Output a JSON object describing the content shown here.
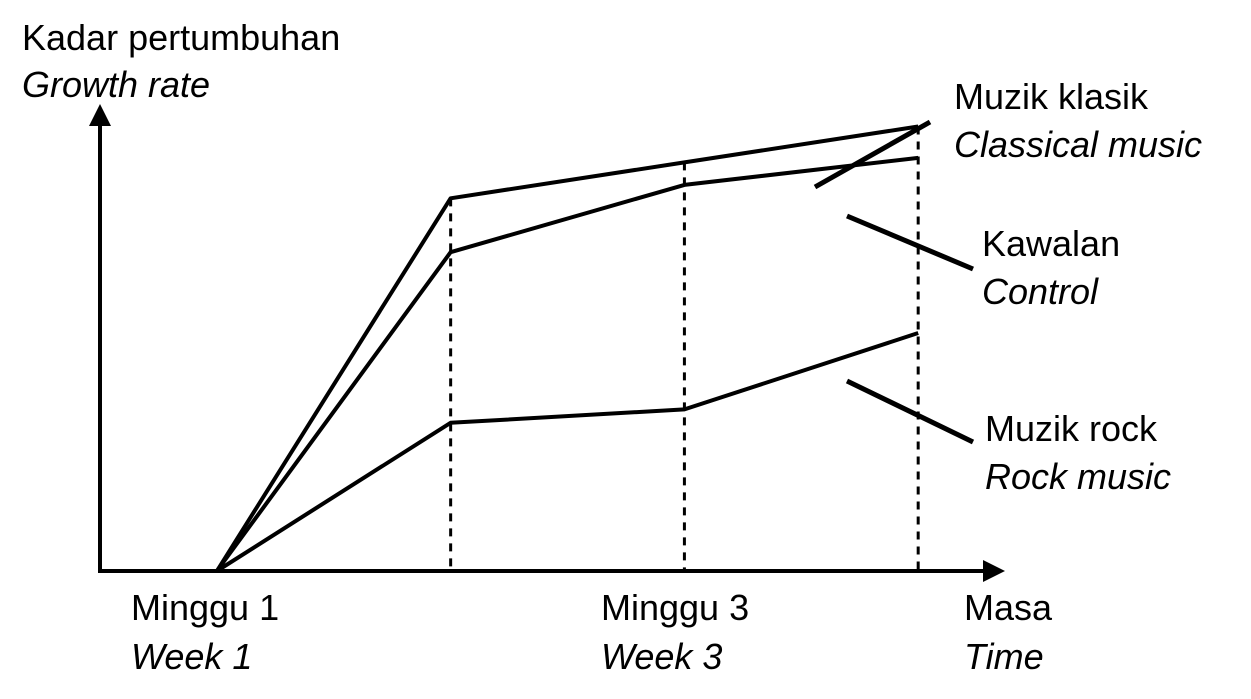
{
  "chart_data": {
    "type": "line",
    "ylabel": "Kadar pertumbuhan",
    "ylabel_en": "Growth rate",
    "xlabel": "Masa",
    "xlabel_en": "Time",
    "x_ticks": [
      {
        "label": "Minggu 1",
        "label_en": "Week 1",
        "x": 1
      },
      {
        "label": "Minggu 3",
        "label_en": "Week 3",
        "x": 3
      }
    ],
    "x": [
      1,
      2,
      3,
      4
    ],
    "xlim": [
      0.5,
      4.35
    ],
    "ylim": [
      0,
      100
    ],
    "y_tick_labels": false,
    "grid": false,
    "dashed_guides_at_x": [
      2,
      3,
      4
    ],
    "series": [
      {
        "name": "Muzik klasik",
        "name_en": "Classical music",
        "values": [
          0,
          83,
          91,
          99
        ]
      },
      {
        "name": "Kawalan",
        "name_en": "Control",
        "values": [
          0,
          71,
          86,
          92
        ]
      },
      {
        "name": "Muzik rock",
        "name_en": "Rock music",
        "values": [
          0,
          33,
          36,
          53
        ]
      }
    ],
    "line_color": "#000000"
  }
}
